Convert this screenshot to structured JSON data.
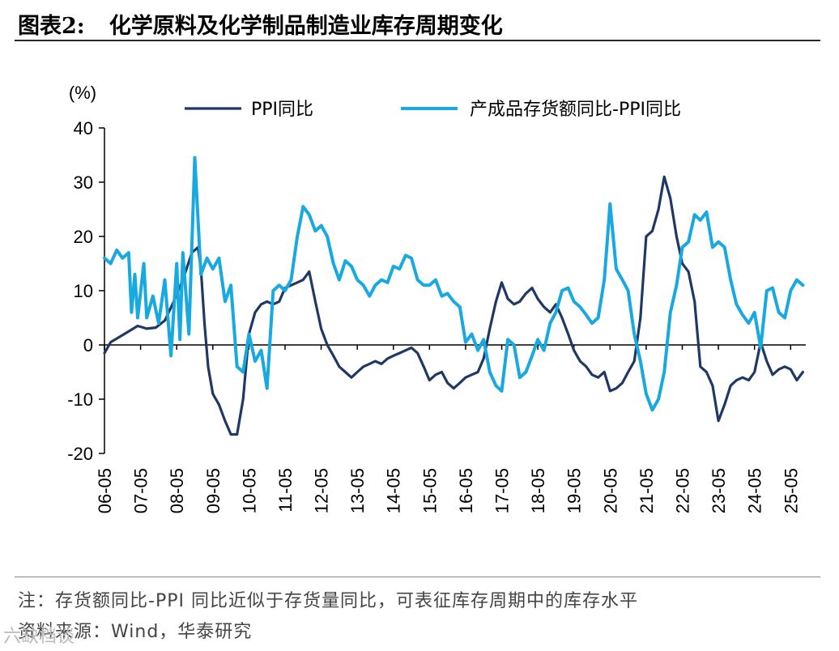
{
  "figure": {
    "label": "图表2:",
    "title": "化学原料及化学制品制造业库存周期变化",
    "note": "注：存货额同比-PPI 同比近似于存货量同比，可表征库存周期中的库存水平",
    "source": "资料来源：Wind，华泰研究",
    "watermark": "六缺档谈"
  },
  "colors": {
    "ppi": "#1f3864",
    "inventory": "#18a9e1",
    "axis": "#000000"
  },
  "chart_data": {
    "type": "line",
    "title": "化学原料及化学制品制造业库存周期变化",
    "ylabel": "(%)",
    "xlabel": "",
    "ylim": [
      -20,
      40
    ],
    "yticks": [
      40,
      30,
      20,
      10,
      0,
      -10,
      -20
    ],
    "ytick_labels": [
      "40",
      "30",
      "20",
      "10",
      "0",
      "-10",
      "-20"
    ],
    "xlim": [
      2006.33,
      2025.75
    ],
    "x_tick_labels": [
      "06-05",
      "07-05",
      "08-05",
      "09-05",
      "10-05",
      "11-05",
      "12-05",
      "13-05",
      "14-05",
      "15-05",
      "16-05",
      "17-05",
      "18-05",
      "19-05",
      "20-05",
      "21-05",
      "22-05",
      "23-05",
      "24-05",
      "25-05"
    ],
    "x_ticks": [
      2006.33,
      2007.33,
      2008.33,
      2009.33,
      2010.33,
      2011.33,
      2012.33,
      2013.33,
      2014.33,
      2015.33,
      2016.33,
      2017.33,
      2018.33,
      2019.33,
      2020.33,
      2021.33,
      2022.33,
      2023.33,
      2024.33,
      2025.33
    ],
    "legend_position": "top",
    "series": [
      {
        "name": "PPI同比",
        "color_key": "ppi",
        "points": [
          [
            2006.33,
            -1.5
          ],
          [
            2006.5,
            0.5
          ],
          [
            2006.75,
            1.5
          ],
          [
            2007.0,
            2.5
          ],
          [
            2007.25,
            3.5
          ],
          [
            2007.5,
            3.0
          ],
          [
            2007.75,
            3.2
          ],
          [
            2008.0,
            4.5
          ],
          [
            2008.25,
            8.0
          ],
          [
            2008.5,
            12.0
          ],
          [
            2008.75,
            17.0
          ],
          [
            2008.92,
            18.0
          ],
          [
            2009.0,
            14.0
          ],
          [
            2009.1,
            4.0
          ],
          [
            2009.2,
            -4.0
          ],
          [
            2009.33,
            -9.0
          ],
          [
            2009.5,
            -11.0
          ],
          [
            2009.67,
            -14.0
          ],
          [
            2009.83,
            -16.5
          ],
          [
            2010.0,
            -16.5
          ],
          [
            2010.17,
            -10.0
          ],
          [
            2010.33,
            2.0
          ],
          [
            2010.5,
            6.0
          ],
          [
            2010.67,
            7.5
          ],
          [
            2010.83,
            8.0
          ],
          [
            2011.0,
            7.5
          ],
          [
            2011.17,
            8.0
          ],
          [
            2011.33,
            10.5
          ],
          [
            2011.5,
            11.0
          ],
          [
            2011.67,
            11.5
          ],
          [
            2011.83,
            12.0
          ],
          [
            2012.0,
            13.5
          ],
          [
            2012.17,
            8.0
          ],
          [
            2012.33,
            3.0
          ],
          [
            2012.5,
            0.0
          ],
          [
            2012.67,
            -2.0
          ],
          [
            2012.83,
            -4.0
          ],
          [
            2013.0,
            -5.0
          ],
          [
            2013.17,
            -6.0
          ],
          [
            2013.33,
            -5.0
          ],
          [
            2013.5,
            -4.0
          ],
          [
            2013.67,
            -3.5
          ],
          [
            2013.83,
            -3.0
          ],
          [
            2014.0,
            -3.5
          ],
          [
            2014.17,
            -2.5
          ],
          [
            2014.33,
            -2.0
          ],
          [
            2014.5,
            -1.5
          ],
          [
            2014.67,
            -1.0
          ],
          [
            2014.83,
            -0.5
          ],
          [
            2015.0,
            -1.5
          ],
          [
            2015.17,
            -4.0
          ],
          [
            2015.33,
            -6.5
          ],
          [
            2015.5,
            -5.5
          ],
          [
            2015.67,
            -5.0
          ],
          [
            2015.83,
            -7.0
          ],
          [
            2016.0,
            -8.0
          ],
          [
            2016.17,
            -7.0
          ],
          [
            2016.33,
            -6.0
          ],
          [
            2016.5,
            -5.5
          ],
          [
            2016.67,
            -5.0
          ],
          [
            2016.83,
            -2.5
          ],
          [
            2017.0,
            3.0
          ],
          [
            2017.17,
            8.0
          ],
          [
            2017.33,
            11.5
          ],
          [
            2017.5,
            8.5
          ],
          [
            2017.67,
            7.5
          ],
          [
            2017.83,
            8.0
          ],
          [
            2018.0,
            9.5
          ],
          [
            2018.17,
            10.5
          ],
          [
            2018.33,
            8.5
          ],
          [
            2018.5,
            7.0
          ],
          [
            2018.67,
            6.0
          ],
          [
            2018.83,
            7.5
          ],
          [
            2019.0,
            5.0
          ],
          [
            2019.17,
            2.0
          ],
          [
            2019.33,
            -1.0
          ],
          [
            2019.5,
            -3.0
          ],
          [
            2019.67,
            -4.0
          ],
          [
            2019.83,
            -5.5
          ],
          [
            2020.0,
            -6.0
          ],
          [
            2020.17,
            -5.0
          ],
          [
            2020.33,
            -8.5
          ],
          [
            2020.5,
            -8.0
          ],
          [
            2020.67,
            -7.0
          ],
          [
            2020.83,
            -5.0
          ],
          [
            2021.0,
            -3.0
          ],
          [
            2021.17,
            5.0
          ],
          [
            2021.33,
            20.0
          ],
          [
            2021.5,
            21.0
          ],
          [
            2021.67,
            25.0
          ],
          [
            2021.83,
            31.0
          ],
          [
            2022.0,
            27.0
          ],
          [
            2022.17,
            20.0
          ],
          [
            2022.33,
            15.0
          ],
          [
            2022.5,
            13.5
          ],
          [
            2022.67,
            8.0
          ],
          [
            2022.83,
            -4.0
          ],
          [
            2023.0,
            -5.0
          ],
          [
            2023.17,
            -7.5
          ],
          [
            2023.33,
            -14.0
          ],
          [
            2023.5,
            -11.0
          ],
          [
            2023.67,
            -7.5
          ],
          [
            2023.83,
            -6.5
          ],
          [
            2024.0,
            -6.0
          ],
          [
            2024.17,
            -6.5
          ],
          [
            2024.33,
            -5.0
          ],
          [
            2024.5,
            0.5
          ],
          [
            2024.67,
            -3.0
          ],
          [
            2024.83,
            -5.5
          ],
          [
            2025.0,
            -4.5
          ],
          [
            2025.17,
            -4.0
          ],
          [
            2025.33,
            -4.5
          ],
          [
            2025.5,
            -6.5
          ],
          [
            2025.67,
            -5.0
          ]
        ]
      },
      {
        "name": "产成品存货额同比-PPI同比",
        "color_key": "inventory",
        "points": [
          [
            2006.33,
            16.0
          ],
          [
            2006.5,
            15.0
          ],
          [
            2006.67,
            17.5
          ],
          [
            2006.83,
            16.0
          ],
          [
            2007.0,
            17.0
          ],
          [
            2007.08,
            6.0
          ],
          [
            2007.17,
            13.0
          ],
          [
            2007.25,
            5.0
          ],
          [
            2007.42,
            15.0
          ],
          [
            2007.5,
            5.0
          ],
          [
            2007.67,
            9.0
          ],
          [
            2007.83,
            4.0
          ],
          [
            2008.0,
            12.0
          ],
          [
            2008.17,
            -2.0
          ],
          [
            2008.33,
            15.0
          ],
          [
            2008.42,
            1.0
          ],
          [
            2008.5,
            17.0
          ],
          [
            2008.67,
            2.0
          ],
          [
            2008.83,
            34.5
          ],
          [
            2009.0,
            13.0
          ],
          [
            2009.17,
            16.0
          ],
          [
            2009.33,
            14.0
          ],
          [
            2009.5,
            16.0
          ],
          [
            2009.67,
            8.0
          ],
          [
            2009.83,
            11.0
          ],
          [
            2010.0,
            -4.0
          ],
          [
            2010.17,
            -5.0
          ],
          [
            2010.33,
            2.0
          ],
          [
            2010.5,
            -3.0
          ],
          [
            2010.67,
            -1.0
          ],
          [
            2010.83,
            -8.0
          ],
          [
            2011.0,
            10.0
          ],
          [
            2011.17,
            11.0
          ],
          [
            2011.33,
            10.0
          ],
          [
            2011.5,
            12.0
          ],
          [
            2011.67,
            20.0
          ],
          [
            2011.83,
            25.5
          ],
          [
            2012.0,
            24.0
          ],
          [
            2012.17,
            21.0
          ],
          [
            2012.33,
            22.0
          ],
          [
            2012.5,
            20.0
          ],
          [
            2012.67,
            15.0
          ],
          [
            2012.83,
            12.0
          ],
          [
            2013.0,
            15.5
          ],
          [
            2013.17,
            14.5
          ],
          [
            2013.33,
            12.0
          ],
          [
            2013.5,
            11.0
          ],
          [
            2013.67,
            9.0
          ],
          [
            2013.83,
            11.0
          ],
          [
            2014.0,
            12.0
          ],
          [
            2014.17,
            11.5
          ],
          [
            2014.33,
            14.5
          ],
          [
            2014.5,
            14.0
          ],
          [
            2014.67,
            16.5
          ],
          [
            2014.83,
            16.0
          ],
          [
            2015.0,
            12.0
          ],
          [
            2015.17,
            11.0
          ],
          [
            2015.33,
            11.0
          ],
          [
            2015.5,
            12.0
          ],
          [
            2015.67,
            9.0
          ],
          [
            2015.83,
            9.5
          ],
          [
            2016.0,
            8.0
          ],
          [
            2016.17,
            7.0
          ],
          [
            2016.33,
            0.5
          ],
          [
            2016.5,
            2.0
          ],
          [
            2016.67,
            -1.0
          ],
          [
            2016.83,
            1.0
          ],
          [
            2017.0,
            -5.0
          ],
          [
            2017.17,
            -7.5
          ],
          [
            2017.33,
            -8.5
          ],
          [
            2017.5,
            1.0
          ],
          [
            2017.67,
            0.0
          ],
          [
            2017.83,
            -6.0
          ],
          [
            2018.0,
            -5.0
          ],
          [
            2018.17,
            -2.0
          ],
          [
            2018.33,
            1.0
          ],
          [
            2018.5,
            -1.0
          ],
          [
            2018.67,
            4.0
          ],
          [
            2018.83,
            6.0
          ],
          [
            2019.0,
            10.0
          ],
          [
            2019.17,
            10.5
          ],
          [
            2019.33,
            8.0
          ],
          [
            2019.5,
            7.0
          ],
          [
            2019.67,
            5.5
          ],
          [
            2019.83,
            4.0
          ],
          [
            2020.0,
            5.0
          ],
          [
            2020.17,
            12.0
          ],
          [
            2020.33,
            26.0
          ],
          [
            2020.5,
            14.0
          ],
          [
            2020.67,
            12.0
          ],
          [
            2020.83,
            10.0
          ],
          [
            2021.0,
            2.0
          ],
          [
            2021.17,
            -3.0
          ],
          [
            2021.33,
            -9.0
          ],
          [
            2021.5,
            -12.0
          ],
          [
            2021.67,
            -10.0
          ],
          [
            2021.83,
            -5.0
          ],
          [
            2022.0,
            6.0
          ],
          [
            2022.17,
            11.0
          ],
          [
            2022.33,
            18.0
          ],
          [
            2022.5,
            19.0
          ],
          [
            2022.67,
            24.0
          ],
          [
            2022.83,
            23.0
          ],
          [
            2023.0,
            24.5
          ],
          [
            2023.17,
            18.0
          ],
          [
            2023.33,
            19.0
          ],
          [
            2023.5,
            18.0
          ],
          [
            2023.67,
            12.0
          ],
          [
            2023.83,
            7.5
          ],
          [
            2024.0,
            5.5
          ],
          [
            2024.17,
            4.0
          ],
          [
            2024.33,
            6.0
          ],
          [
            2024.5,
            -0.5
          ],
          [
            2024.67,
            10.0
          ],
          [
            2024.83,
            10.5
          ],
          [
            2025.0,
            6.0
          ],
          [
            2025.17,
            5.0
          ],
          [
            2025.33,
            10.0
          ],
          [
            2025.5,
            12.0
          ],
          [
            2025.67,
            11.0
          ]
        ]
      }
    ]
  }
}
